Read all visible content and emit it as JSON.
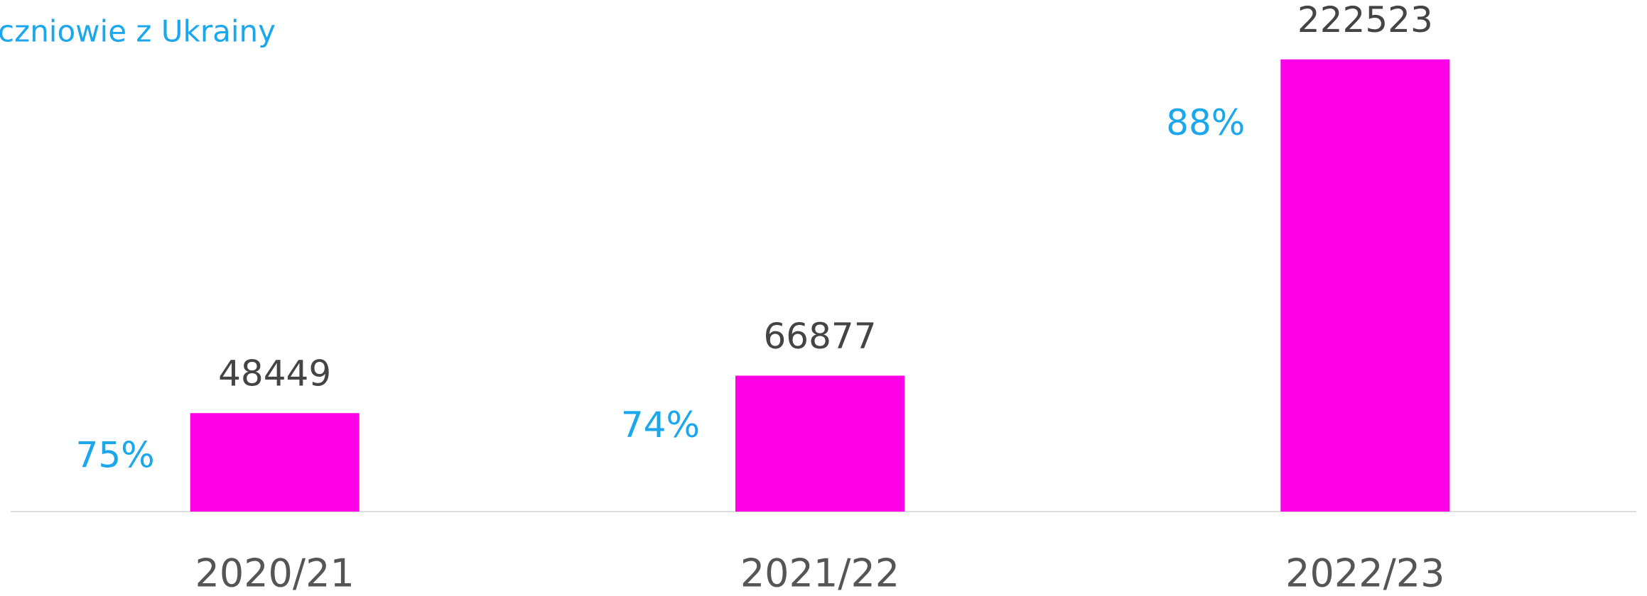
{
  "chart_data": {
    "type": "bar",
    "title": "Uczniowie z Ukrainy",
    "categories": [
      "2020/21",
      "2021/22",
      "2022/23"
    ],
    "values": [
      48449,
      66877,
      222523
    ],
    "color": "#ff00e6",
    "ylim": [
      0,
      250000
    ],
    "shares": {
      "values": [
        75,
        74,
        88
      ],
      "value_labels": [
        "75%",
        "74%",
        "88%"
      ],
      "color": "#1aa7ec"
    }
  }
}
